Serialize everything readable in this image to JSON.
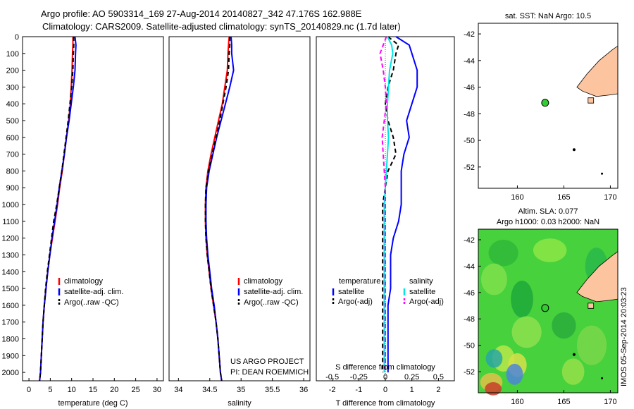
{
  "titles": {
    "line1": "Argo profile: AO 5903314_169 27-Aug-2014 20140827_342 47.176S 162.988E",
    "line2": "Climatology: CARS2009. Satellite-adjusted climatology: synTS_20140829.nc (1.7d later)"
  },
  "credit": {
    "line1": "US ARGO PROJECT",
    "line2": "PI: DEAN ROEMMICH"
  },
  "side_stamp": "IMOS 05-Sep-2014 20:03:23",
  "colors": {
    "clim": "#ff0000",
    "sat": "#0000ff",
    "argo": "#000000",
    "s_sat": "#00e5e5",
    "s_argo": "#ff00ff",
    "land": "#fcc5a0",
    "dot": "#33cc33"
  },
  "chart_data": [
    {
      "type": "line",
      "id": "temperature",
      "xlabel": "temperature (deg C)",
      "ylim": [
        2050,
        0
      ],
      "xlim": [
        -1.5,
        31.5
      ],
      "xticks": [
        0,
        5,
        10,
        15,
        20,
        25,
        30
      ],
      "yticks": [
        0,
        100,
        200,
        300,
        400,
        500,
        600,
        700,
        800,
        900,
        1000,
        1100,
        1200,
        1300,
        1400,
        1500,
        1600,
        1700,
        1800,
        1900,
        2000
      ],
      "legend": [
        "climatology",
        "satellite-adj. clim.",
        "Argo(..raw -QC)"
      ],
      "series": [
        {
          "name": "climatology",
          "style": "clim",
          "x": [
            10.3,
            10.3,
            10.2,
            10.1,
            9.9,
            9.7,
            9.3,
            8.8,
            8.3,
            7.8,
            7.2,
            6.7,
            6.1,
            5.5,
            4.9,
            4.4,
            4.0,
            3.6,
            3.3,
            3.1,
            2.9,
            2.7,
            2.5
          ],
          "y": [
            0,
            50,
            100,
            200,
            300,
            400,
            500,
            600,
            700,
            800,
            900,
            1000,
            1100,
            1200,
            1300,
            1400,
            1500,
            1600,
            1700,
            1800,
            1900,
            2000,
            2050
          ]
        },
        {
          "name": "satellite-adj. clim.",
          "style": "sat",
          "x": [
            10.8,
            11.0,
            10.9,
            10.8,
            10.4,
            9.9,
            9.4,
            8.8,
            8.3,
            7.7,
            7.1,
            6.6,
            6.0,
            5.4,
            4.9,
            4.4,
            4.0,
            3.6,
            3.3,
            3.1,
            2.9,
            2.7,
            2.5
          ],
          "y": [
            0,
            50,
            100,
            200,
            300,
            400,
            500,
            600,
            700,
            800,
            900,
            1000,
            1100,
            1200,
            1300,
            1400,
            1500,
            1600,
            1700,
            1800,
            1900,
            2000,
            2050
          ]
        },
        {
          "name": "Argo(..raw -QC)",
          "style": "argo",
          "x": [
            10.5,
            10.5,
            10.4,
            10.3,
            10.0,
            9.6,
            9.2,
            8.7,
            8.2,
            7.7,
            7.1,
            6.5,
            5.8,
            5.3,
            4.8,
            4.3,
            3.9,
            3.6,
            3.3,
            3.1,
            2.9,
            2.7,
            2.5
          ],
          "y": [
            0,
            50,
            100,
            200,
            300,
            400,
            500,
            600,
            700,
            800,
            900,
            1000,
            1100,
            1200,
            1300,
            1400,
            1500,
            1600,
            1700,
            1800,
            1900,
            2000,
            2050
          ]
        }
      ]
    },
    {
      "type": "line",
      "id": "salinity",
      "xlabel": "salinity",
      "ylim": [
        2050,
        0
      ],
      "xlim": [
        33.85,
        36.1
      ],
      "xticks": [
        34,
        34.5,
        35,
        35.5,
        36
      ],
      "legend": [
        "climatology",
        "satellite-adj. clim.",
        "Argo(..raw -QC)"
      ],
      "series": [
        {
          "name": "climatology",
          "style": "clim",
          "x": [
            34.81,
            34.8,
            34.79,
            34.78,
            34.74,
            34.7,
            34.64,
            34.58,
            34.52,
            34.47,
            34.44,
            34.43,
            34.43,
            34.44,
            34.46,
            34.49,
            34.52,
            34.56,
            34.6,
            34.63,
            34.65,
            34.67,
            34.69
          ],
          "y": [
            0,
            50,
            100,
            200,
            300,
            400,
            500,
            600,
            700,
            800,
            900,
            1000,
            1100,
            1200,
            1300,
            1400,
            1500,
            1600,
            1700,
            1800,
            1900,
            2000,
            2050
          ]
        },
        {
          "name": "satellite-adj. clim.",
          "style": "sat",
          "x": [
            34.84,
            34.85,
            34.85,
            34.88,
            34.82,
            34.75,
            34.68,
            34.61,
            34.55,
            34.49,
            34.45,
            34.44,
            34.44,
            34.45,
            34.47,
            34.5,
            34.53,
            34.57,
            34.6,
            34.63,
            34.65,
            34.67,
            34.69
          ],
          "y": [
            0,
            50,
            100,
            200,
            300,
            400,
            500,
            600,
            700,
            800,
            900,
            1000,
            1100,
            1200,
            1300,
            1400,
            1500,
            1600,
            1700,
            1800,
            1900,
            2000,
            2050
          ]
        },
        {
          "name": "Argo(..raw -QC)",
          "style": "argo",
          "x": [
            34.82,
            34.82,
            34.81,
            34.8,
            34.76,
            34.71,
            34.66,
            34.6,
            34.54,
            34.48,
            34.44,
            34.43,
            34.43,
            34.44,
            34.46,
            34.49,
            34.52,
            34.56,
            34.6,
            34.63,
            34.65,
            34.67,
            34.69
          ],
          "y": [
            0,
            50,
            100,
            200,
            300,
            400,
            500,
            600,
            700,
            800,
            900,
            1000,
            1100,
            1200,
            1300,
            1400,
            1500,
            1600,
            1700,
            1800,
            1900,
            2000,
            2050
          ]
        }
      ]
    },
    {
      "type": "line",
      "id": "difference",
      "xlabel": "T difference from climatology",
      "xlabel_top": "S difference from climatology",
      "xlim": [
        -2.6,
        2.6
      ],
      "xticks": [
        -2,
        -1,
        0,
        1,
        2
      ],
      "xticks_s": [
        -0.5,
        -0.25,
        0,
        0.25,
        0.5
      ],
      "ylim": [
        2050,
        0
      ],
      "legend_titles": [
        "temperature",
        "salinity"
      ],
      "legend": [
        "satellite",
        "Argo(-adj)",
        "satellite",
        "Argo(-adj)"
      ],
      "series": [
        {
          "name": "satellite",
          "group": "temperature",
          "style": "sat",
          "x": [
            0.4,
            0.9,
            1.0,
            1.2,
            1.2,
            1.0,
            0.8,
            0.9,
            0.7,
            0.6,
            0.6,
            0.6,
            0.5,
            0.3,
            0.2,
            0.2,
            0.2,
            0.1,
            0.1,
            0.1,
            0.1,
            0.1
          ],
          "y": [
            0,
            50,
            100,
            200,
            300,
            400,
            500,
            600,
            700,
            800,
            900,
            1000,
            1100,
            1200,
            1300,
            1400,
            1500,
            1600,
            1700,
            1800,
            1900,
            2000
          ]
        },
        {
          "name": "Argo(-adj)",
          "group": "temperature",
          "style": "argo",
          "x": [
            0.1,
            0.5,
            0.4,
            0.3,
            0.1,
            0.0,
            0.1,
            0.3,
            0.4,
            0.1,
            0.0,
            -0.1,
            -0.1,
            -0.1,
            -0.1,
            -0.1,
            -0.1,
            -0.1,
            -0.1,
            -0.1,
            -0.1,
            -0.1
          ],
          "y": [
            0,
            50,
            100,
            200,
            300,
            400,
            500,
            600,
            700,
            800,
            900,
            1000,
            1100,
            1200,
            1300,
            1400,
            1500,
            1600,
            1700,
            1800,
            1900,
            2000
          ]
        },
        {
          "name": "satellite",
          "group": "salinity",
          "style": "s_sat",
          "x": [
            0.02,
            0.06,
            0.07,
            0.04,
            0.03,
            0.02,
            0.02,
            0.03,
            0.02,
            0.01,
            0.0,
            -0.01,
            -0.01,
            -0.01,
            -0.01,
            -0.01,
            -0.01,
            -0.01,
            -0.01,
            -0.01,
            -0.01,
            -0.01
          ],
          "y": [
            0,
            50,
            100,
            200,
            300,
            400,
            500,
            600,
            700,
            800,
            900,
            1000,
            1100,
            1200,
            1300,
            1400,
            1500,
            1600,
            1700,
            1800,
            1900,
            2000
          ]
        },
        {
          "name": "Argo(-adj)",
          "group": "salinity",
          "style": "s_argo",
          "x": [
            0.01,
            -0.02,
            -0.05,
            -0.02,
            0.0,
            0.01,
            -0.01,
            -0.03,
            -0.02,
            -0.01,
            0.0,
            0.0,
            0.0,
            0.0,
            0.0,
            0.0,
            0.0,
            0.0,
            0.0,
            0.0,
            0.0,
            0.0
          ],
          "y": [
            0,
            50,
            100,
            200,
            300,
            400,
            500,
            600,
            700,
            800,
            900,
            1000,
            1100,
            1200,
            1300,
            1400,
            1500,
            1600,
            1700,
            1800,
            1900,
            2000
          ]
        }
      ]
    },
    {
      "type": "map",
      "id": "sst-map",
      "title": "sat. SST: NaN Argo: 10.5",
      "xlim": [
        155.8,
        170.8
      ],
      "ylim": [
        -53.6,
        -41.2
      ],
      "xticks": [
        160,
        165,
        170
      ],
      "yticks": [
        -42,
        -44,
        -46,
        -48,
        -50,
        -52
      ],
      "float_position": {
        "lon": 162.988,
        "lat": -47.176
      }
    },
    {
      "type": "heatmap",
      "id": "sla-map",
      "title": "Altim. SLA: 0.077",
      "subtitle": "Argo h1000: 0.03 h2000: NaN",
      "xlim": [
        155.8,
        170.8
      ],
      "ylim": [
        -53.6,
        -41.2
      ],
      "xticks": [
        160,
        165,
        170
      ],
      "yticks": [
        -42,
        -44,
        -46,
        -48,
        -50,
        -52
      ],
      "float_position": {
        "lon": 162.988,
        "lat": -47.176
      }
    }
  ]
}
